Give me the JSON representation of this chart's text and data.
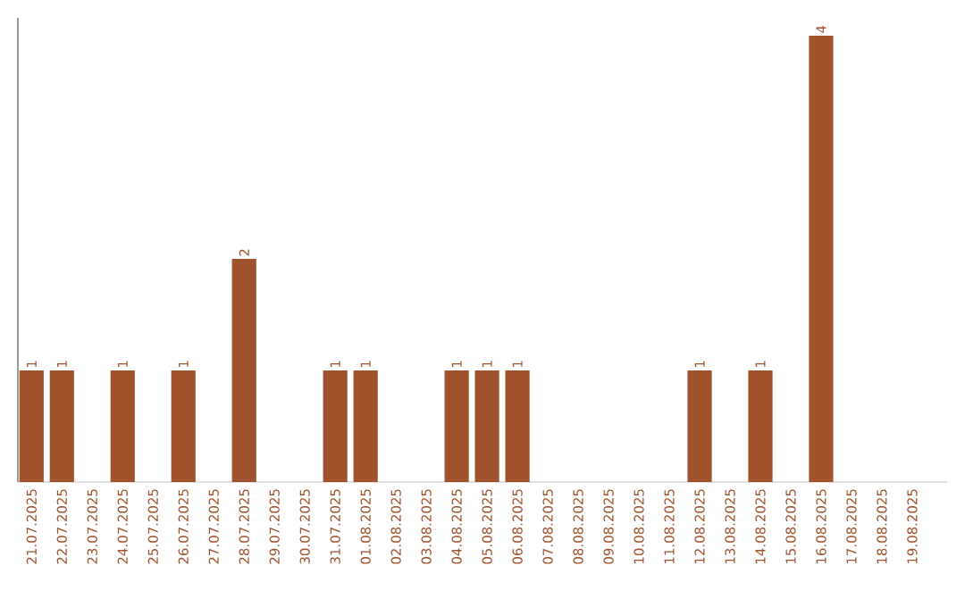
{
  "chart_data": {
    "type": "bar",
    "categories": [
      "21.07.2025",
      "22.07.2025",
      "23.07.2025",
      "24.07.2025",
      "25.07.2025",
      "26.07.2025",
      "27.07.2025",
      "28.07.2025",
      "29.07.2025",
      "30.07.2025",
      "31.07.2025",
      "01.08.2025",
      "02.08.2025",
      "03.08.2025",
      "04.08.2025",
      "05.08.2025",
      "06.08.2025",
      "07.08.2025",
      "08.08.2025",
      "09.08.2025",
      "10.08.2025",
      "11.08.2025",
      "12.08.2025",
      "13.08.2025",
      "14.08.2025",
      "15.08.2025",
      "16.08.2025",
      "17.08.2025",
      "18.08.2025",
      "19.08.2025"
    ],
    "values": [
      1,
      1,
      0,
      1,
      0,
      1,
      0,
      2,
      0,
      0,
      1,
      1,
      0,
      0,
      1,
      1,
      1,
      0,
      0,
      0,
      0,
      0,
      1,
      0,
      1,
      0,
      4,
      0,
      0,
      0
    ],
    "value_labels": [
      "1",
      "1",
      null,
      "1",
      null,
      "1",
      null,
      "2",
      null,
      null,
      "1",
      "1",
      null,
      null,
      "1",
      "1",
      "1",
      null,
      null,
      null,
      null,
      null,
      "1",
      null,
      "1",
      null,
      "4",
      null,
      null,
      null
    ],
    "color": "#a0522d"
  }
}
